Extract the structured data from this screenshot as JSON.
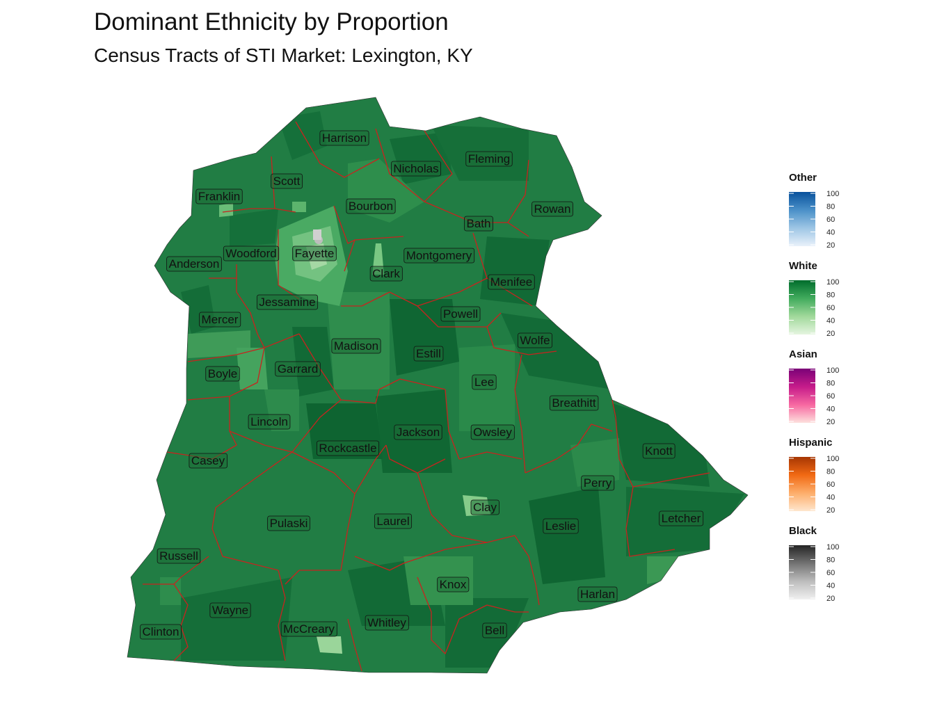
{
  "title": "Dominant Ethnicity by Proportion",
  "subtitle": "Census Tracts of STI Market: Lexington, KY",
  "counties": [
    "Harrison",
    "Nicholas",
    "Fleming",
    "Scott",
    "Franklin",
    "Bourbon",
    "Rowan",
    "Bath",
    "Woodford",
    "Fayette",
    "Anderson",
    "Montgomery",
    "Clark",
    "Menifee",
    "Jessamine",
    "Powell",
    "Mercer",
    "Madison",
    "Wolfe",
    "Estill",
    "Boyle",
    "Garrard",
    "Lee",
    "Breathitt",
    "Lincoln",
    "Jackson",
    "Owsley",
    "Rockcastle",
    "Knott",
    "Casey",
    "Perry",
    "Clay",
    "Letcher",
    "Pulaski",
    "Laurel",
    "Leslie",
    "Russell",
    "Knox",
    "Harlan",
    "Wayne",
    "McCreary",
    "Whitley",
    "Bell",
    "Clinton"
  ],
  "legend": [
    {
      "name": "Other",
      "colors": [
        "#e9f1fa",
        "#9ec6e5",
        "#4a90c8",
        "#08519c"
      ],
      "ticks": [
        "100",
        "80",
        "60",
        "40",
        "20"
      ]
    },
    {
      "name": "White",
      "colors": [
        "#e5f5e0",
        "#a1d99b",
        "#41ab5d",
        "#006d2c"
      ],
      "ticks": [
        "100",
        "80",
        "60",
        "40",
        "20"
      ]
    },
    {
      "name": "Asian",
      "colors": [
        "#fde0dd",
        "#f768a1",
        "#c51b8a",
        "#7a0177"
      ],
      "ticks": [
        "100",
        "80",
        "60",
        "40",
        "20"
      ]
    },
    {
      "name": "Hispanic",
      "colors": [
        "#fee6ce",
        "#fdae6b",
        "#f16913",
        "#a63603"
      ],
      "ticks": [
        "100",
        "80",
        "60",
        "40",
        "20"
      ]
    },
    {
      "name": "Black",
      "colors": [
        "#f0f0f0",
        "#bdbdbd",
        "#737373",
        "#252525"
      ],
      "ticks": [
        "100",
        "80",
        "60",
        "40",
        "20"
      ]
    }
  ]
}
